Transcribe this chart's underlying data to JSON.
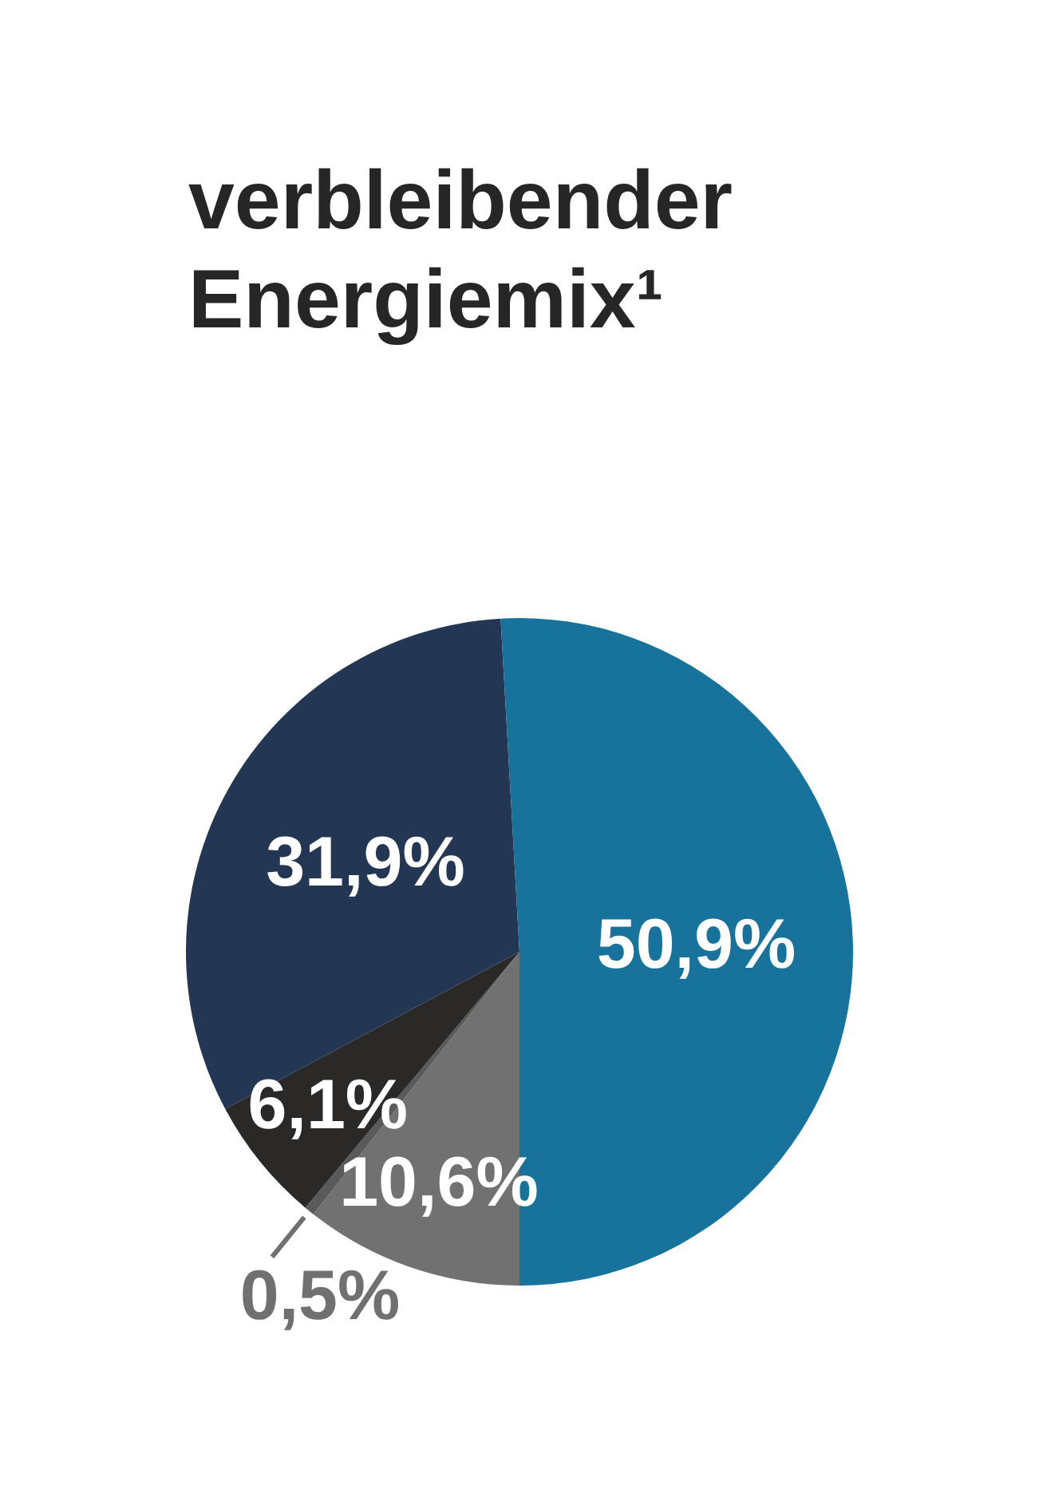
{
  "chart_data": {
    "type": "pie",
    "title": "verbleibender Energiemix¹",
    "categories": [
      null,
      null,
      null,
      null,
      null
    ],
    "values": [
      10.6,
      0.5,
      6.1,
      31.9,
      50.9
    ],
    "colors": [
      "#717171",
      "#5a5a5a",
      "#2a2928",
      "#233653",
      "#17729c"
    ],
    "value_labels": [
      "10,6%",
      "0,5%",
      "6,1%",
      "31,9%",
      "50,9%"
    ]
  }
}
